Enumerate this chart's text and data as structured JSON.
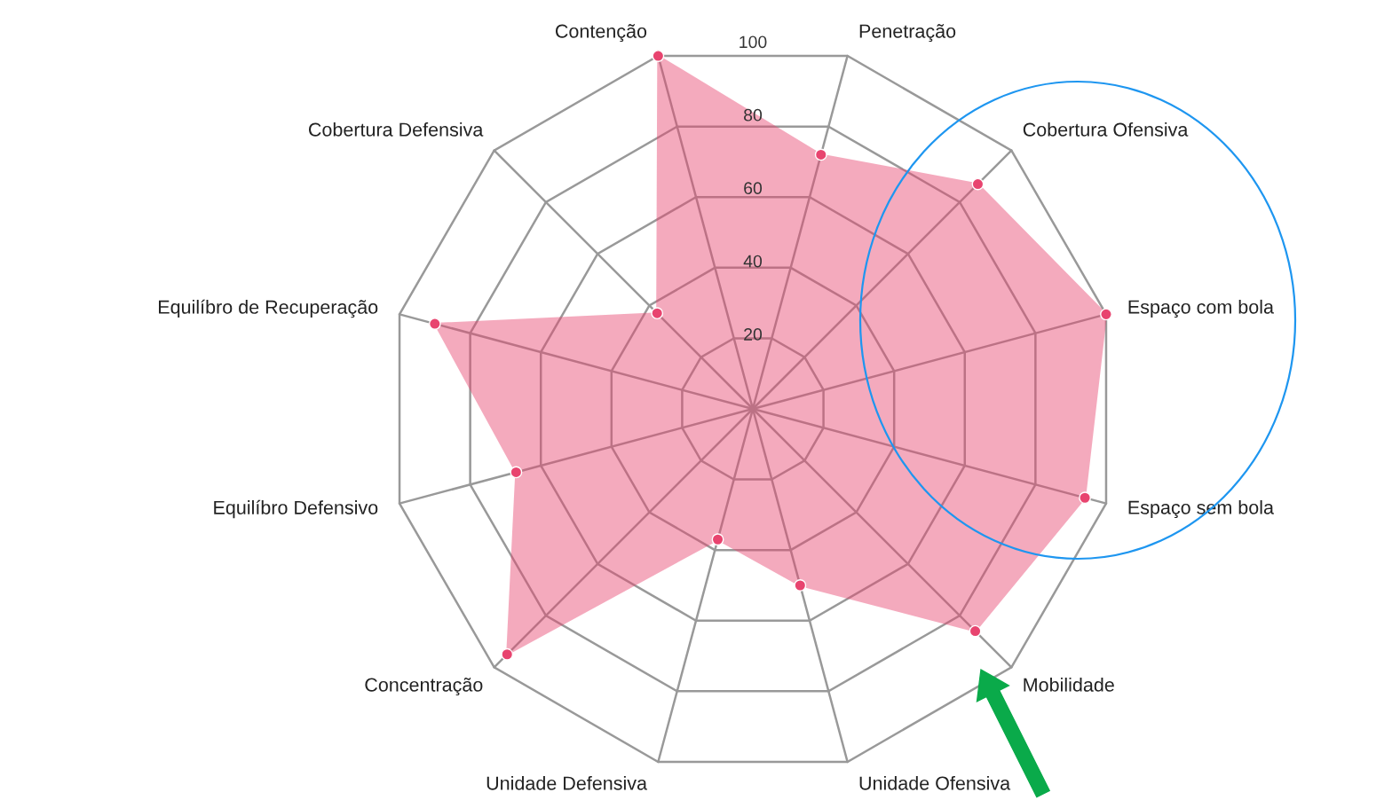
{
  "chart_data": {
    "type": "radar",
    "categories": [
      "Contenção",
      "Penetração",
      "Cobertura Ofensiva",
      "Espaço com bola",
      "Espaço sem bola",
      "Mobilidade",
      "Unidade Ofensiva",
      "Unidade Defensiva",
      "Concentração",
      "Equilíbro Defensivo",
      "Equilíbro de Recuperação",
      "Cobertura Defensiva"
    ],
    "series": [
      {
        "color": "#e8446f",
        "values": [
          100,
          72,
          87,
          100,
          94,
          86,
          50,
          37,
          95,
          67,
          90,
          37
        ]
      }
    ],
    "ylim": [
      0,
      100
    ],
    "yticks": [
      20,
      40,
      60,
      80,
      100
    ],
    "grid": true,
    "marker": "circle"
  }
}
